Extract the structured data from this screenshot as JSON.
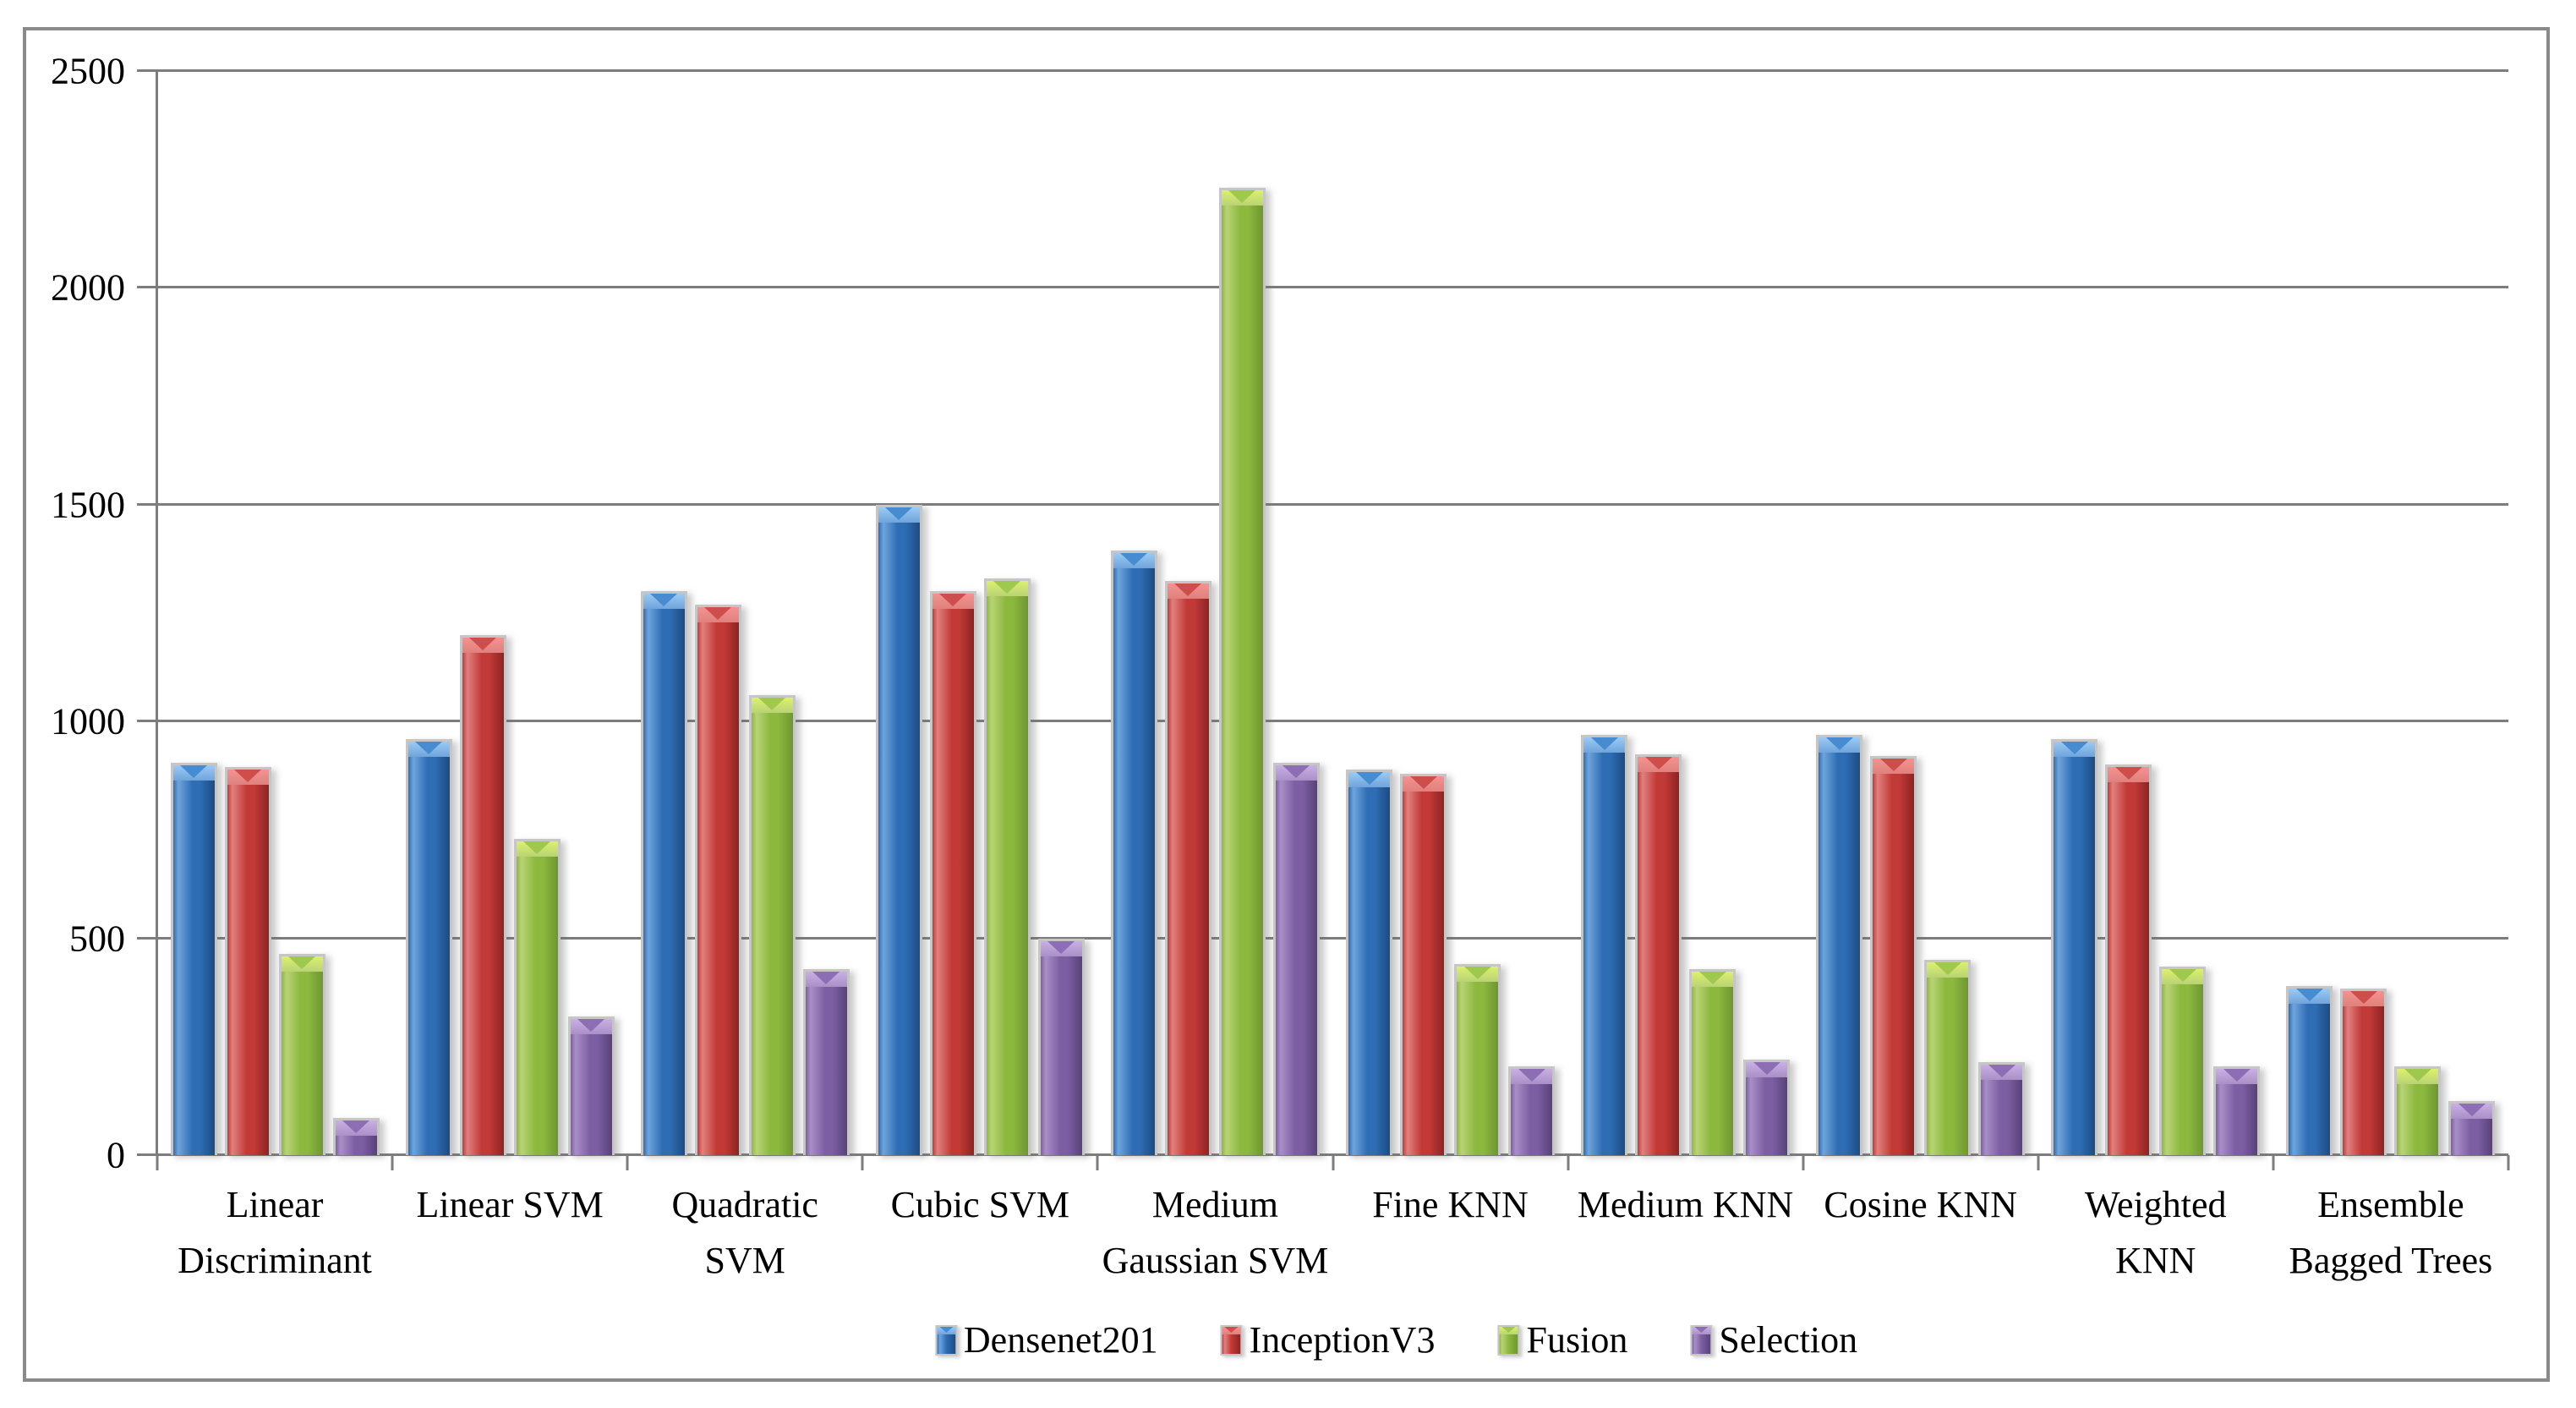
{
  "figure": {
    "background": "#ffffff",
    "border_color": "#8a8a8a",
    "gridline_color": "#7d7d7d"
  },
  "chart_data": {
    "type": "bar",
    "title": "",
    "xlabel": "",
    "ylabel": "",
    "ylim": [
      0,
      2500
    ],
    "y_ticks": [
      0,
      500,
      1000,
      1500,
      2000,
      2500
    ],
    "grid": true,
    "legend_position": "bottom",
    "categories": [
      "Linear Discriminant",
      "Linear SVM",
      "Quadratic SVM",
      "Cubic SVM",
      "Medium Gaussian SVM",
      "Fine KNN",
      "Medium KNN",
      "Cosine KNN",
      "Weighted KNN",
      "Ensemble Bagged Trees"
    ],
    "categories_display": [
      "Linear\nDiscriminant",
      "Linear SVM",
      "Quadratic\nSVM",
      "Cubic SVM",
      "Medium\nGaussian SVM",
      "Fine KNN",
      "Medium KNN",
      "Cosine KNN",
      "Weighted\nKNN",
      "Ensemble\nBagged Trees"
    ],
    "series": [
      {
        "name": "Densenet201",
        "color": "#2E6DB4",
        "values": [
          905,
          960,
          1300,
          1500,
          1395,
          890,
          970,
          970,
          960,
          390
        ]
      },
      {
        "name": "InceptionV3",
        "color": "#C23A38",
        "values": [
          895,
          1200,
          1270,
          1300,
          1325,
          880,
          925,
          920,
          900,
          385
        ]
      },
      {
        "name": "Fusion",
        "color": "#8CB83E",
        "values": [
          465,
          730,
          1060,
          1330,
          2230,
          440,
          430,
          450,
          435,
          205
        ]
      },
      {
        "name": "Selection",
        "color": "#7C5FA3",
        "values": [
          85,
          320,
          430,
          500,
          905,
          205,
          220,
          215,
          205,
          125
        ]
      }
    ]
  }
}
